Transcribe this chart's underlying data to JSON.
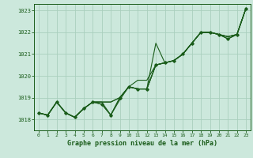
{
  "background_color": "#cce8dc",
  "grid_color": "#aacfbe",
  "line_color": "#1a5c1a",
  "title": "Graphe pression niveau de la mer (hPa)",
  "xlim": [
    -0.5,
    23.5
  ],
  "ylim": [
    1017.5,
    1023.3
  ],
  "yticks": [
    1018,
    1019,
    1020,
    1021,
    1022,
    1023
  ],
  "xticks": [
    0,
    1,
    2,
    3,
    4,
    5,
    6,
    7,
    8,
    9,
    10,
    11,
    12,
    13,
    14,
    15,
    16,
    17,
    18,
    19,
    20,
    21,
    22,
    23
  ],
  "series": [
    [
      1018.3,
      1018.2,
      1018.8,
      1018.3,
      1018.1,
      1018.5,
      1018.8,
      1018.8,
      1018.8,
      1019.0,
      1019.5,
      1019.4,
      1019.4,
      1020.5,
      1020.6,
      1020.7,
      1021.0,
      1021.5,
      1022.0,
      1022.0,
      1021.9,
      1021.8,
      1021.9,
      1023.1
    ],
    [
      1018.3,
      1018.2,
      1018.8,
      1018.3,
      1018.1,
      1018.5,
      1018.8,
      1018.8,
      1018.8,
      1019.0,
      1019.5,
      1019.8,
      1019.8,
      1020.5,
      1020.6,
      1020.7,
      1021.0,
      1021.5,
      1022.0,
      1022.0,
      1021.9,
      1021.8,
      1021.9,
      1023.1
    ],
    [
      1018.3,
      1018.2,
      1018.8,
      1018.3,
      1018.1,
      1018.5,
      1018.8,
      1018.8,
      1018.2,
      1018.9,
      1019.5,
      1019.4,
      1019.4,
      1021.5,
      1020.6,
      1020.7,
      1021.0,
      1021.5,
      1022.0,
      1022.0,
      1021.9,
      1021.8,
      1021.9,
      1023.1
    ],
    [
      1018.3,
      1018.2,
      1018.8,
      1018.3,
      1018.1,
      1018.5,
      1018.8,
      1018.7,
      1018.2,
      1019.0,
      1019.5,
      1019.4,
      1019.4,
      1020.5,
      1020.6,
      1020.7,
      1021.0,
      1021.5,
      1022.0,
      1022.0,
      1021.9,
      1021.7,
      1021.9,
      1023.1
    ]
  ],
  "marker_series": [
    [
      1018.3,
      1018.2,
      1018.8,
      1018.3,
      1018.1,
      1018.5,
      1018.8,
      1018.7,
      1018.2,
      1019.0,
      1019.5,
      1019.4,
      1019.4,
      1020.5,
      1020.6,
      1020.7,
      1021.0,
      1021.5,
      1022.0,
      1022.0,
      1021.9,
      1021.7,
      1021.9,
      1023.1
    ]
  ]
}
